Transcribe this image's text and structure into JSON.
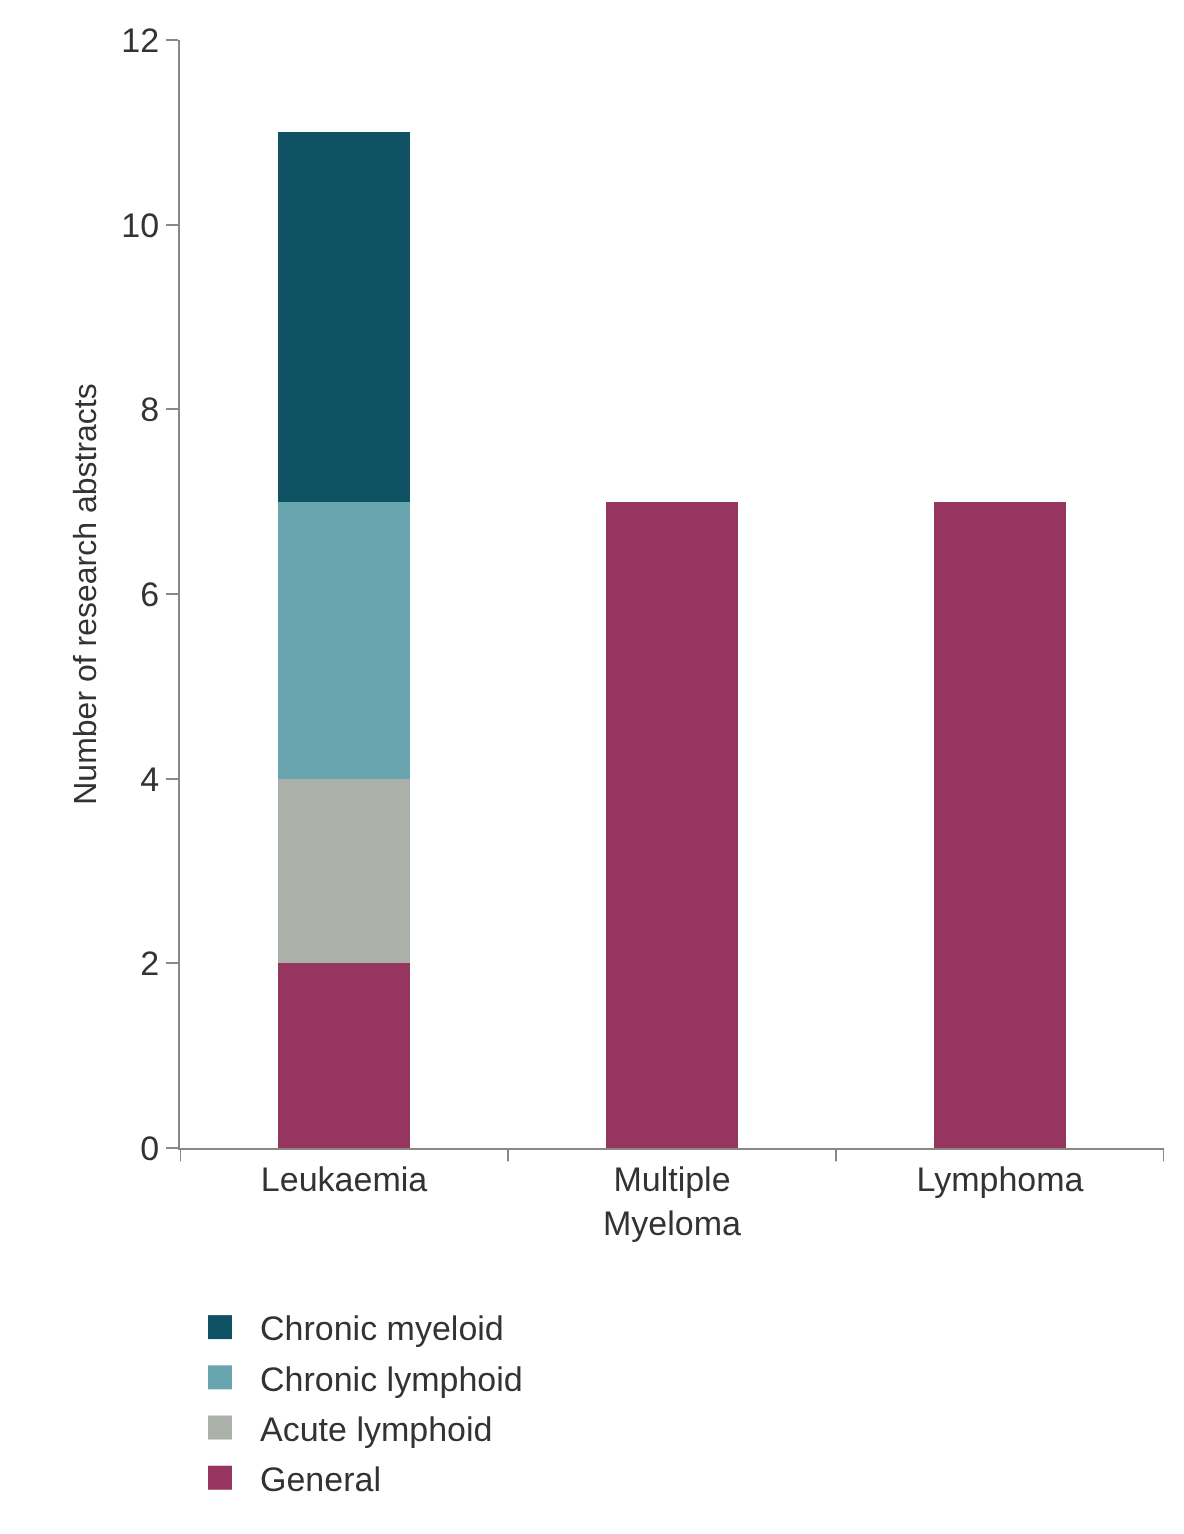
{
  "chart_data": {
    "type": "bar",
    "ylabel": "Number of research abstracts",
    "categories": [
      "Leukaemia",
      "Multiple Myeloma",
      "Lymphoma"
    ],
    "stacked": true,
    "series": [
      {
        "name": "General",
        "color": "#96355f",
        "values": [
          2,
          7,
          7
        ]
      },
      {
        "name": "Acute lymphoid",
        "color": "#abb0a8",
        "values": [
          2,
          0,
          0
        ]
      },
      {
        "name": "Chronic lymphoid",
        "color": "#68a5ae",
        "values": [
          3,
          0,
          0
        ]
      },
      {
        "name": "Chronic myeloid",
        "color": "#0f5263",
        "values": [
          4,
          0,
          0
        ]
      }
    ],
    "ylim": [
      0,
      12
    ],
    "yticks": [
      0,
      2,
      4,
      6,
      8,
      10,
      12
    ],
    "grid": false,
    "legend": "bottom"
  }
}
